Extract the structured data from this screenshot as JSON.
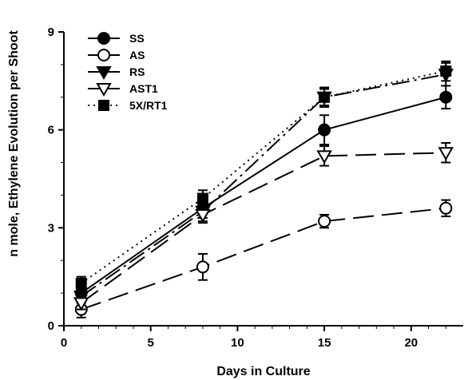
{
  "chart_data": {
    "type": "line",
    "title": "",
    "xlabel": "Days in Culture",
    "ylabel": "n mole, Ethylene Evolution per Shoot",
    "xlim": [
      0,
      23
    ],
    "ylim": [
      0,
      9
    ],
    "xticks": [
      0,
      5,
      10,
      15,
      20
    ],
    "yticks": [
      0,
      3,
      6,
      9
    ],
    "grid": false,
    "legend_position": "top-left",
    "series": [
      {
        "name": "SS",
        "marker": "filled-circle",
        "line_style": "solid",
        "x": [
          1,
          8,
          15,
          22
        ],
        "y": [
          1.0,
          3.6,
          6.0,
          7.0
        ],
        "err": [
          0.3,
          0.3,
          0.45,
          0.35
        ]
      },
      {
        "name": "AS",
        "marker": "open-circle",
        "line_style": "long-dash",
        "x": [
          1,
          8,
          15,
          22
        ],
        "y": [
          0.5,
          1.8,
          3.2,
          3.6
        ],
        "err": [
          0.25,
          0.4,
          0.2,
          0.25
        ]
      },
      {
        "name": "RS",
        "marker": "filled-triangle-down",
        "line_style": "dash",
        "x": [
          1,
          8,
          15,
          22
        ],
        "y": [
          0.9,
          3.5,
          7.0,
          7.7
        ],
        "err": [
          0.2,
          0.3,
          0.3,
          0.35
        ]
      },
      {
        "name": "AST1",
        "marker": "open-triangle-down",
        "line_style": "long-dash",
        "x": [
          1,
          8,
          15,
          22
        ],
        "y": [
          0.7,
          3.4,
          5.2,
          5.3
        ],
        "err": [
          0.2,
          0.25,
          0.3,
          0.3
        ]
      },
      {
        "name": "5X/RT1",
        "marker": "filled-square",
        "line_style": "dotted",
        "x": [
          1,
          8,
          15,
          22
        ],
        "y": [
          1.3,
          3.9,
          7.0,
          7.8
        ],
        "err": [
          0.2,
          0.25,
          0.25,
          0.3
        ]
      }
    ]
  }
}
